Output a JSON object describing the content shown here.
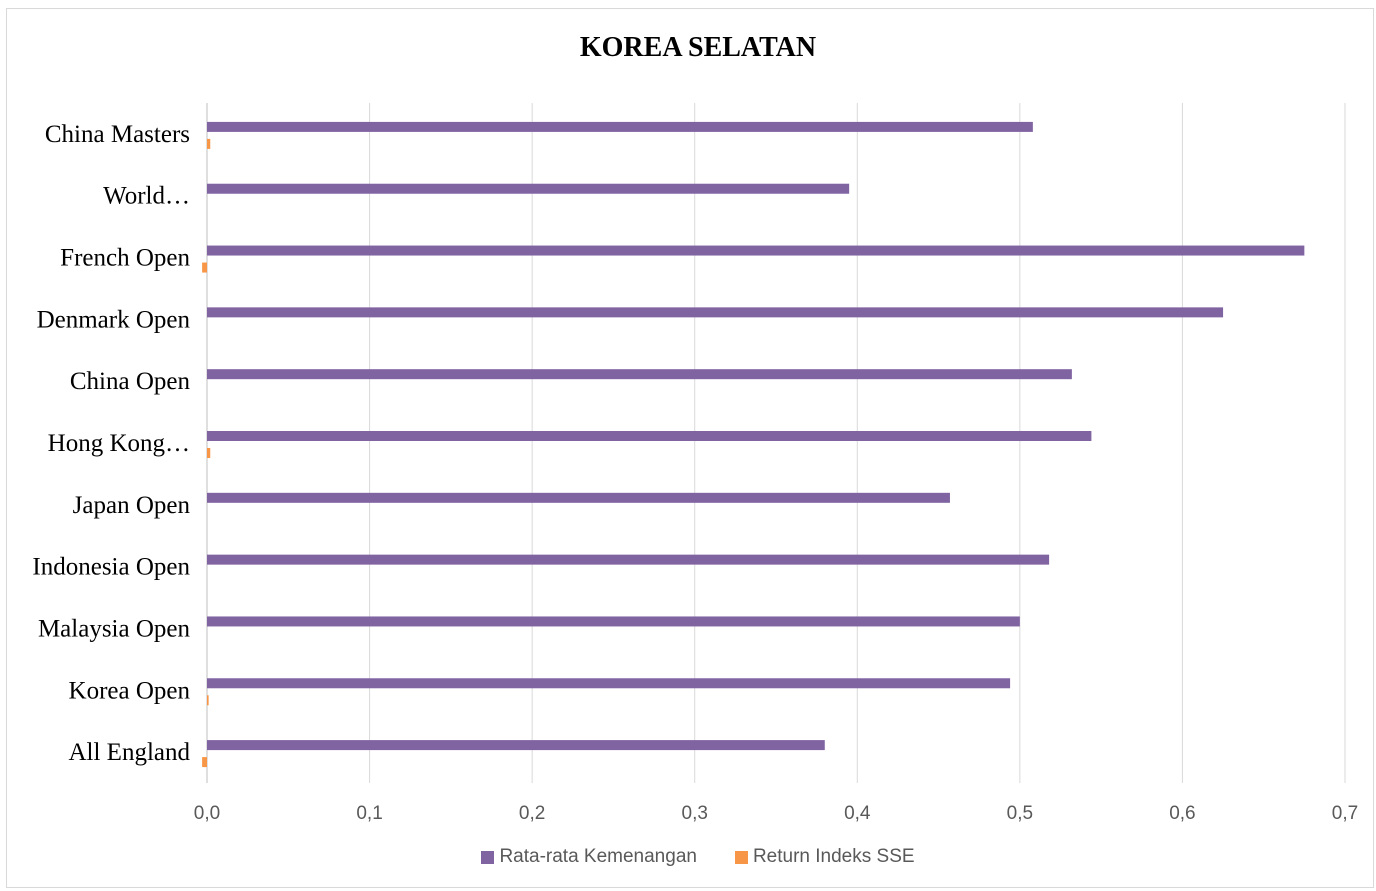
{
  "chart_data": {
    "type": "bar",
    "orientation": "horizontal",
    "title": "KOREA SELATAN",
    "categories": [
      "All England",
      "Korea Open",
      "Malaysia Open",
      "Indonesia Open",
      "Japan Open",
      "Hong Kong…",
      "China Open",
      "Denmark Open",
      "French Open",
      "World…",
      "China Masters"
    ],
    "series": [
      {
        "name": "Rata-rata Kemenangan",
        "color": "#8064a2",
        "values": [
          0.38,
          0.494,
          0.5,
          0.518,
          0.457,
          0.544,
          0.532,
          0.625,
          0.675,
          0.395,
          0.508
        ]
      },
      {
        "name": "Return Indeks SSE",
        "color": "#f79646",
        "values": [
          -0.003,
          0.001,
          0.0,
          0.0,
          0.0,
          0.002,
          0.0,
          0.0,
          -0.003,
          0.0,
          0.002
        ]
      }
    ],
    "xlim": [
      0,
      0.7
    ],
    "xticks": [
      "0,0",
      "0,1",
      "0,2",
      "0,3",
      "0,4",
      "0,5",
      "0,6",
      "0,7"
    ],
    "grid": true,
    "legend_position": "bottom"
  }
}
